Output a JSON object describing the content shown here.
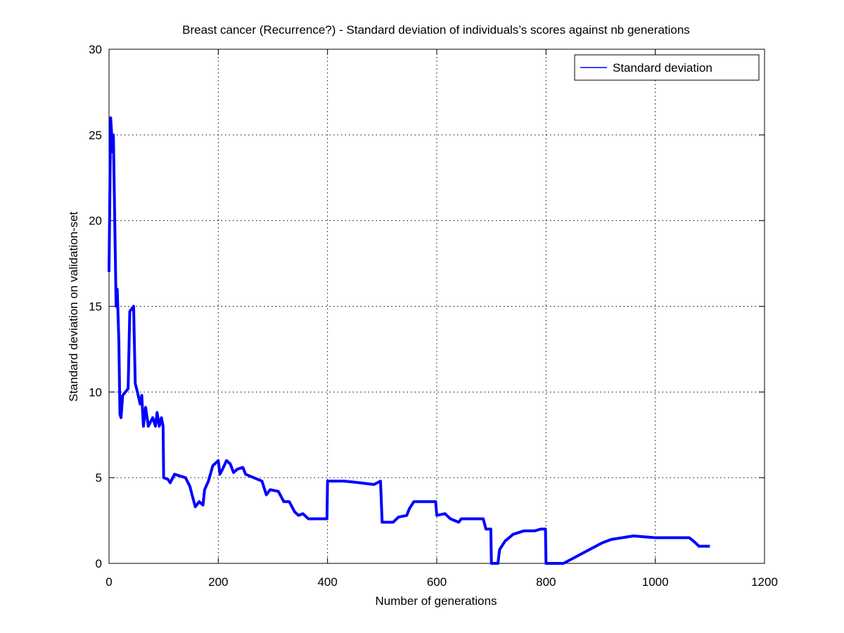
{
  "chart_data": {
    "type": "line",
    "title": "Breast cancer (Recurrence?) - Standard deviation of individuals’s scores against nb generations",
    "x_label": "Number of generations",
    "y_label": "Standard deviation on validation-set",
    "xlim": [
      0,
      1200
    ],
    "xticks": [
      0,
      200,
      400,
      600,
      800,
      1000,
      1200
    ],
    "ylim": [
      0,
      30
    ],
    "yticks": [
      0,
      5,
      10,
      15,
      20,
      25,
      30
    ],
    "grid": true,
    "legend": "top-right",
    "x": [
      0,
      3,
      7,
      8,
      13,
      15,
      18,
      20,
      22,
      25,
      30,
      35,
      38,
      45,
      48,
      52,
      57,
      60,
      63,
      67,
      72,
      80,
      85,
      88,
      92,
      96,
      99,
      100,
      108,
      112,
      120,
      130,
      140,
      148,
      152,
      158,
      165,
      172,
      175,
      182,
      190,
      200,
      203,
      208,
      215,
      222,
      228,
      235,
      245,
      250,
      265,
      280,
      288,
      295,
      310,
      315,
      320,
      330,
      340,
      347,
      355,
      365,
      399,
      400,
      430,
      460,
      485,
      497,
      500,
      520,
      530,
      545,
      550,
      558,
      598,
      600,
      615,
      625,
      640,
      645,
      685,
      690,
      699,
      700,
      712,
      715,
      725,
      740,
      760,
      780,
      790,
      799,
      800,
      832,
      903,
      920,
      940,
      960,
      1000,
      1062,
      1070,
      1080,
      1100
    ],
    "series": [
      {
        "name": "Standard deviation",
        "color": "#0000ff",
        "values": [
          17,
          26,
          24,
          25,
          15,
          16,
          13,
          8.7,
          8.5,
          9.8,
          10,
          10.2,
          14.7,
          15,
          10.5,
          10,
          9.3,
          9.8,
          8,
          9.1,
          8,
          8.5,
          8,
          8.8,
          8,
          8.5,
          8,
          5,
          4.9,
          4.7,
          5.2,
          5.1,
          5,
          4.5,
          4,
          3.3,
          3.6,
          3.4,
          4.3,
          4.8,
          5.7,
          6,
          5.2,
          5.5,
          6,
          5.8,
          5.3,
          5.5,
          5.6,
          5.2,
          5,
          4.8,
          4,
          4.3,
          4.2,
          3.9,
          3.6,
          3.6,
          3,
          2.8,
          2.9,
          2.6,
          2.6,
          4.8,
          4.8,
          4.7,
          4.6,
          4.8,
          2.4,
          2.4,
          2.7,
          2.8,
          3.2,
          3.6,
          3.6,
          2.8,
          2.9,
          2.6,
          2.4,
          2.6,
          2.6,
          2,
          2,
          0,
          0,
          0.8,
          1.3,
          1.7,
          1.9,
          1.9,
          2,
          2,
          0,
          0,
          1.2,
          1.4,
          1.5,
          1.6,
          1.5,
          1.5,
          1.3,
          1,
          1
        ]
      }
    ]
  }
}
